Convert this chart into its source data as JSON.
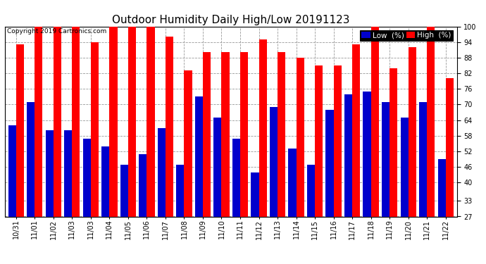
{
  "title": "Outdoor Humidity Daily High/Low 20191123",
  "copyright": "Copyright 2019 Cartronics.com",
  "labels": [
    "10/31",
    "11/01",
    "11/02",
    "11/03",
    "11/03",
    "11/04",
    "11/05",
    "11/06",
    "11/07",
    "11/08",
    "11/09",
    "11/10",
    "11/11",
    "11/12",
    "11/13",
    "11/14",
    "11/15",
    "11/16",
    "11/17",
    "11/18",
    "11/19",
    "11/20",
    "11/21",
    "11/22"
  ],
  "high": [
    93,
    100,
    100,
    100,
    94,
    100,
    100,
    100,
    96,
    83,
    90,
    90,
    90,
    95,
    90,
    88,
    85,
    85,
    93,
    100,
    84,
    92,
    100,
    80
  ],
  "low": [
    62,
    71,
    60,
    60,
    57,
    54,
    47,
    51,
    61,
    47,
    73,
    65,
    57,
    44,
    69,
    53,
    47,
    68,
    74,
    75,
    71,
    65,
    71,
    49
  ],
  "ylim_min": 27,
  "ylim_max": 100,
  "yticks": [
    27,
    33,
    40,
    46,
    52,
    58,
    64,
    70,
    76,
    82,
    88,
    94,
    100
  ],
  "bar_width": 0.42,
  "high_color": "#ff0000",
  "low_color": "#0000cc",
  "bg_color": "#ffffff",
  "grid_color": "#999999",
  "title_fontsize": 11,
  "legend_fontsize": 7.5,
  "tick_fontsize": 7,
  "copyright_fontsize": 6.5
}
